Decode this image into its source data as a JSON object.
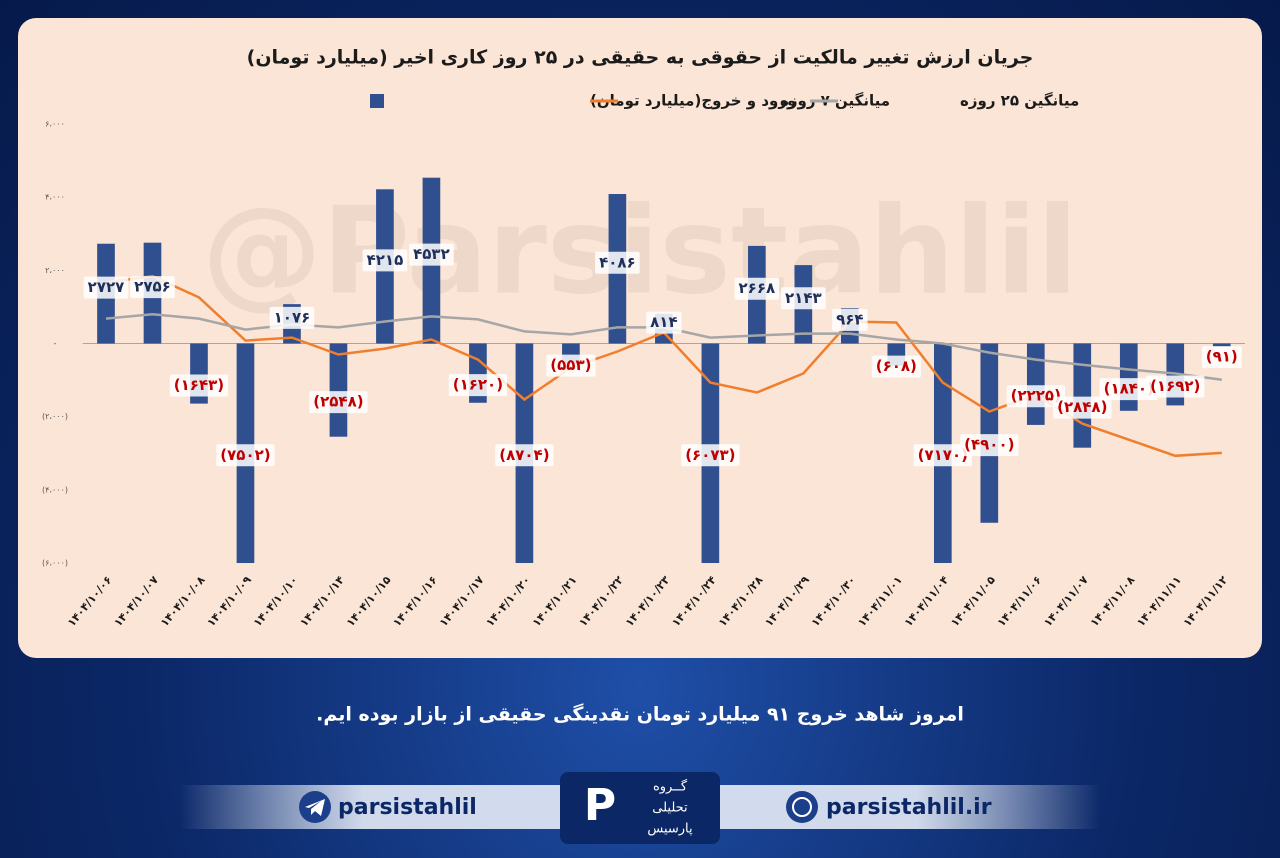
{
  "chart_data": {
    "type": "bar",
    "title": "جریان ارزش تغییر مالکیت از حقوقی به حقیقی در ۲۵ روز کاری اخیر (میلیارد تومان)",
    "categories": [
      "۱۴۰۴/۱۰/۰۶",
      "۱۴۰۴/۱۰/۰۷",
      "۱۴۰۴/۱۰/۰۸",
      "۱۴۰۴/۱۰/۰۹",
      "۱۴۰۴/۱۰/۱۰",
      "۱۴۰۴/۱۰/۱۴",
      "۱۴۰۴/۱۰/۱۵",
      "۱۴۰۴/۱۰/۱۶",
      "۱۴۰۴/۱۰/۱۷",
      "۱۴۰۴/۱۰/۲۰",
      "۱۴۰۴/۱۰/۲۱",
      "۱۴۰۴/۱۰/۲۲",
      "۱۴۰۴/۱۰/۲۳",
      "۱۴۰۴/۱۰/۲۴",
      "۱۴۰۴/۱۰/۲۸",
      "۱۴۰۴/۱۰/۲۹",
      "۱۴۰۴/۱۰/۳۰",
      "۱۴۰۴/۱۱/۰۱",
      "۱۴۰۴/۱۱/۰۴",
      "۱۴۰۴/۱۱/۰۵",
      "۱۴۰۴/۱۱/۰۶",
      "۱۴۰۴/۱۱/۰۷",
      "۱۴۰۴/۱۱/۰۸",
      "۱۴۰۴/۱۱/۱۱",
      "۱۴۰۴/۱۱/۱۲"
    ],
    "series": [
      {
        "name": "ورود و خروج(میلیارد تومان)",
        "type": "bar",
        "color": "#2f4f8f",
        "values": [
          2727,
          2756,
          -1643,
          -7502,
          1076,
          -2548,
          4215,
          4532,
          -1620,
          -8704,
          -553,
          4086,
          814,
          -6073,
          2668,
          2143,
          964,
          -608,
          -7170,
          -4900,
          -2225,
          -2848,
          -1840,
          -1692,
          -91
        ],
        "value_labels": [
          "۲۷۲۷",
          "۲۷۵۶",
          "(۱۶۴۳)",
          "(۷۵۰۲)",
          "۱۰۷۶",
          "(۲۵۴۸)",
          "۴۲۱۵",
          "۴۵۳۲",
          "(۱۶۲۰)",
          "(۸۷۰۴)",
          "(۵۵۳)",
          "۴۰۸۶",
          "۸۱۴",
          "(۶۰۷۳)",
          "۲۶۶۸",
          "۲۱۴۳",
          "۹۶۴",
          "(۶۰۸)",
          "(۷۱۷۰)",
          "(۴۹۰۰)",
          "(۲۲۲۵)",
          "(۲۸۴۸)",
          "(۱۸۴۰)",
          "(۱۶۹۲)",
          "(۹۱)"
        ]
      },
      {
        "name": "میانگین ۷ روزه",
        "type": "line",
        "color": "#f07f2d",
        "values": [
          1670,
          1840,
          1260,
          80,
          160,
          -300,
          -140,
          110,
          -440,
          -1530,
          -660,
          -220,
          300,
          -1070,
          -1340,
          -820,
          600,
          575,
          -1070,
          -1860,
          -1400,
          -2190,
          -2630,
          -3070,
          -2990
        ]
      },
      {
        "name": "میانگین ۲۵ روزه",
        "type": "line",
        "color": "#a6a6a6",
        "values": [
          680,
          800,
          680,
          380,
          520,
          440,
          600,
          740,
          660,
          330,
          250,
          440,
          440,
          160,
          220,
          270,
          270,
          110,
          0,
          -250,
          -440,
          -580,
          -710,
          -820,
          -990
        ]
      }
    ],
    "ylim": [
      -6000,
      6000
    ],
    "yticks": [
      {
        "value": 6000,
        "label": "۶،۰۰۰"
      },
      {
        "value": 4000,
        "label": "۴،۰۰۰"
      },
      {
        "value": 2000,
        "label": "۲،۰۰۰"
      },
      {
        "value": 0,
        "label": "-"
      },
      {
        "value": -2000,
        "label": "(۲،۰۰۰)"
      },
      {
        "value": -4000,
        "label": "(۴،۰۰۰)"
      },
      {
        "value": -6000,
        "label": "(۶،۰۰۰)"
      }
    ],
    "grid": false,
    "watermark": "@Parsistahlil"
  },
  "caption": "امروز شاهد خروج ۹۱ میلیارد تومان نقدینگی حقیقی از بازار بوده ایم.",
  "footer": {
    "telegram": "parsistahlil",
    "website": "parsistahlil.ir",
    "logo": [
      "گــروه",
      "تحلیلی",
      "پارسیس"
    ]
  }
}
